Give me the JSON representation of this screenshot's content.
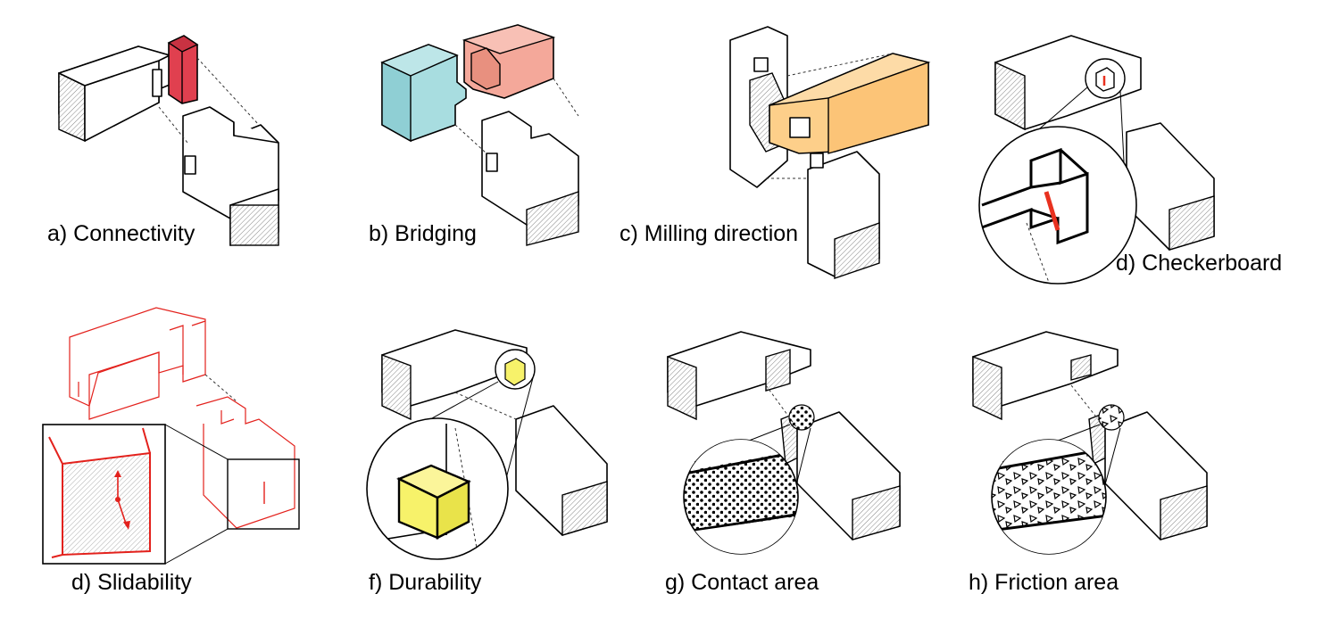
{
  "panels": [
    {
      "id": "a",
      "label": "a) Connectivity",
      "highlight": "#e0404f"
    },
    {
      "id": "b",
      "label": "b) Bridging",
      "highlight_left": "#a8dde0",
      "highlight_right": "#f4a89a"
    },
    {
      "id": "c",
      "label": "c) Milling direction",
      "highlight": "#fdcf8a"
    },
    {
      "id": "d",
      "label": "d) Checkerboard",
      "highlight": "#e8311f"
    },
    {
      "id": "e",
      "label": "d) Slidability",
      "highlight": "#e3211c"
    },
    {
      "id": "f",
      "label": "f) Durability",
      "highlight": "#f7f26a"
    },
    {
      "id": "g",
      "label": "g) Contact area"
    },
    {
      "id": "h",
      "label": "h) Friction area"
    }
  ]
}
